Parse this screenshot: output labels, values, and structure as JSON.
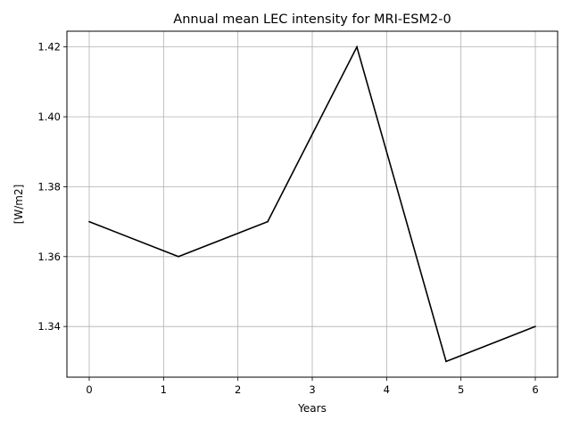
{
  "chart_data": {
    "type": "line",
    "title": "Annual mean LEC intensity for MRI-ESM2-0",
    "xlabel": "Years",
    "ylabel": "[W/m2]",
    "x": [
      0,
      1.2,
      2.4,
      3.6,
      4.8,
      6.0
    ],
    "series": [
      {
        "values": [
          1.37,
          1.36,
          1.37,
          1.42,
          1.33,
          1.34
        ],
        "color": "#000000"
      }
    ],
    "xlim": [
      -0.3,
      6.3
    ],
    "ylim": [
      1.3255,
      1.4245
    ],
    "xticks": [
      0,
      1,
      2,
      3,
      4,
      5,
      6
    ],
    "xtick_labels": [
      "0",
      "1",
      "2",
      "3",
      "4",
      "5",
      "6"
    ],
    "yticks": [
      1.34,
      1.36,
      1.38,
      1.4,
      1.42
    ],
    "ytick_labels": [
      "1.34",
      "1.36",
      "1.38",
      "1.40",
      "1.42"
    ],
    "grid": true,
    "grid_color": "#b0b0b0"
  }
}
